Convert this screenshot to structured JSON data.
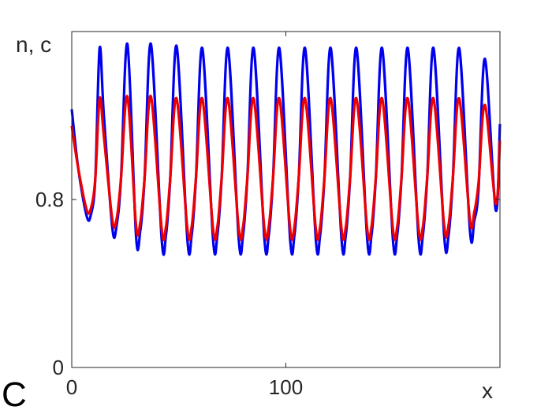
{
  "panel_label": "C",
  "chart_data": {
    "type": "line",
    "title": "",
    "ylabel": "n, c",
    "xlabel": "x",
    "xlim": [
      0,
      200
    ],
    "ylim": [
      0,
      1.6
    ],
    "xticks": [
      0,
      100
    ],
    "yticks": [
      0,
      0.8
    ],
    "ytick_labels": [
      "0",
      "0.8"
    ],
    "xtick_labels": [
      "0",
      "100"
    ],
    "grid": false,
    "legend": "none",
    "series": [
      {
        "color": "#0000ee",
        "x": [
          0,
          3,
          7,
          9,
          11,
          13,
          15,
          19,
          21,
          23,
          26,
          30,
          32,
          34,
          37,
          42,
          44,
          46,
          49,
          54,
          56,
          58,
          61,
          66,
          68,
          70,
          73,
          78,
          80,
          82,
          85,
          90,
          92,
          94,
          97,
          102,
          104,
          106,
          109,
          114,
          116,
          118,
          121,
          126,
          128,
          130,
          133,
          138,
          140,
          142,
          145,
          150,
          152,
          154,
          157,
          162,
          164,
          166,
          169,
          174,
          176,
          178,
          181,
          186,
          188,
          190,
          193,
          198,
          200
        ],
        "y": [
          1.23,
          0.95,
          0.72,
          0.73,
          0.9,
          1.52,
          1.2,
          0.66,
          0.68,
          0.9,
          1.54,
          0.63,
          0.65,
          0.9,
          1.54,
          0.61,
          0.63,
          0.9,
          1.53,
          0.61,
          0.63,
          0.9,
          1.52,
          0.61,
          0.63,
          0.9,
          1.52,
          0.61,
          0.63,
          0.9,
          1.52,
          0.61,
          0.63,
          0.9,
          1.52,
          0.61,
          0.63,
          0.9,
          1.52,
          0.61,
          0.63,
          0.9,
          1.52,
          0.61,
          0.63,
          0.9,
          1.52,
          0.61,
          0.63,
          0.9,
          1.52,
          0.61,
          0.63,
          0.9,
          1.52,
          0.61,
          0.63,
          0.9,
          1.52,
          0.62,
          0.63,
          0.9,
          1.52,
          0.65,
          0.7,
          0.85,
          1.47,
          0.75,
          1.16
        ]
      },
      {
        "color": "#ee0000",
        "x": [
          0,
          3,
          7,
          9,
          11,
          13,
          15,
          19,
          21,
          23,
          26,
          30,
          32,
          34,
          37,
          42,
          44,
          46,
          49,
          54,
          56,
          58,
          61,
          66,
          68,
          70,
          73,
          78,
          80,
          82,
          85,
          90,
          92,
          94,
          97,
          102,
          104,
          106,
          109,
          114,
          116,
          118,
          121,
          126,
          128,
          130,
          133,
          138,
          140,
          142,
          145,
          150,
          152,
          154,
          157,
          162,
          164,
          166,
          169,
          174,
          176,
          178,
          181,
          186,
          188,
          190,
          193,
          198,
          200
        ],
        "y": [
          1.15,
          0.95,
          0.75,
          0.76,
          0.9,
          1.28,
          1.1,
          0.7,
          0.71,
          0.9,
          1.29,
          0.68,
          0.69,
          0.9,
          1.29,
          0.66,
          0.67,
          0.9,
          1.28,
          0.66,
          0.67,
          0.9,
          1.28,
          0.66,
          0.67,
          0.9,
          1.28,
          0.66,
          0.67,
          0.9,
          1.28,
          0.66,
          0.67,
          0.9,
          1.28,
          0.66,
          0.67,
          0.9,
          1.28,
          0.66,
          0.67,
          0.9,
          1.28,
          0.66,
          0.67,
          0.9,
          1.28,
          0.66,
          0.67,
          0.9,
          1.28,
          0.66,
          0.67,
          0.9,
          1.28,
          0.66,
          0.67,
          0.9,
          1.28,
          0.67,
          0.68,
          0.9,
          1.28,
          0.7,
          0.74,
          0.88,
          1.25,
          0.78,
          1.08
        ]
      }
    ]
  }
}
